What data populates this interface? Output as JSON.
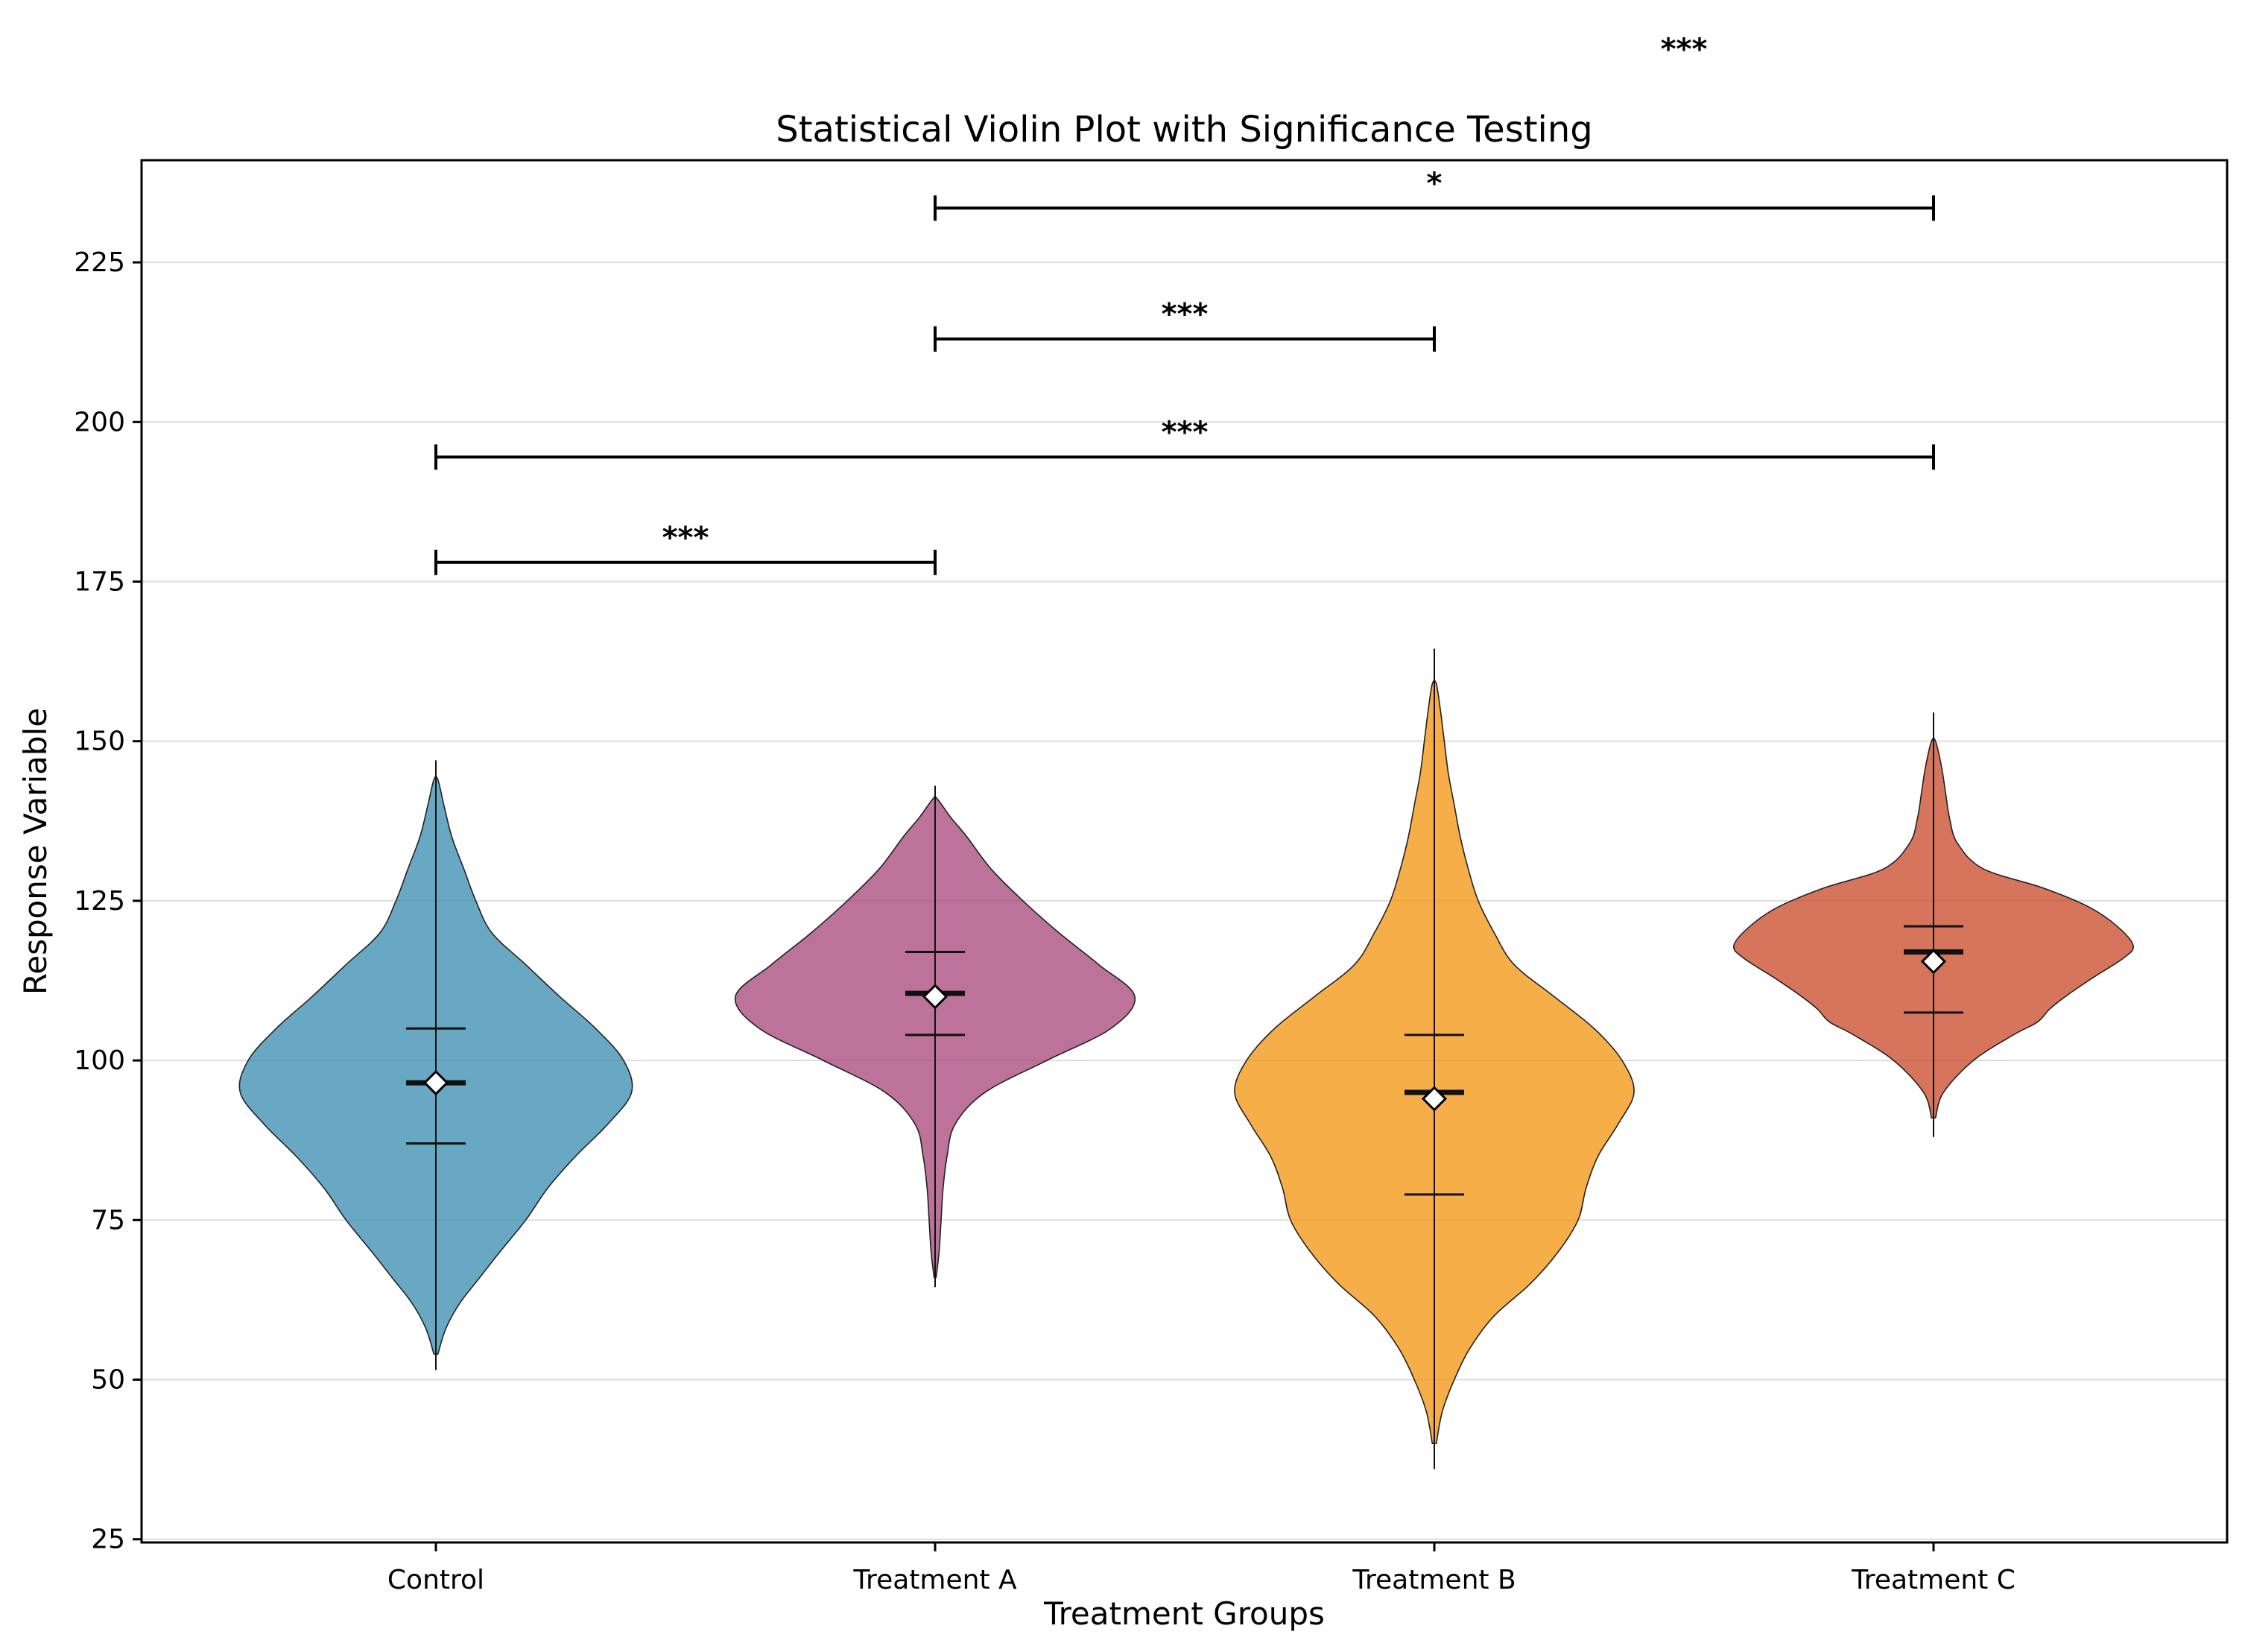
{
  "chart_data": {
    "type": "violin",
    "title": "Statistical Violin Plot with Significance Testing",
    "xlabel": "Treatment Groups",
    "ylabel": "Response Variable",
    "ylim": [
      24.5,
      241
    ],
    "yticks": [
      25,
      50,
      75,
      100,
      125,
      150,
      175,
      200,
      225
    ],
    "ytick_labels": [
      "25",
      "50",
      "75",
      "100",
      "125",
      "150",
      "175",
      "200",
      "225"
    ],
    "grid": "horizontal",
    "categories": [
      "Control",
      "Treatment A",
      "Treatment B",
      "Treatment C"
    ],
    "groups": [
      {
        "name": "Control",
        "color": "#2E86AB",
        "min": 51.5,
        "max": 147,
        "q1": 87,
        "median": 96.5,
        "q3": 105,
        "mean": 96.5,
        "density": [
          [
            54,
            0.01
          ],
          [
            58,
            0.05
          ],
          [
            62,
            0.12
          ],
          [
            66,
            0.22
          ],
          [
            70,
            0.32
          ],
          [
            75,
            0.45
          ],
          [
            80,
            0.56
          ],
          [
            85,
            0.7
          ],
          [
            90,
            0.86
          ],
          [
            95,
            0.98
          ],
          [
            100,
            0.94
          ],
          [
            105,
            0.8
          ],
          [
            110,
            0.62
          ],
          [
            115,
            0.45
          ],
          [
            120,
            0.28
          ],
          [
            125,
            0.2
          ],
          [
            130,
            0.14
          ],
          [
            135,
            0.08
          ],
          [
            140,
            0.04
          ],
          [
            144,
            0.01
          ]
        ]
      },
      {
        "name": "Treatment A",
        "color": "#A23B72",
        "min": 64.5,
        "max": 143,
        "q1": 104,
        "median": 110.5,
        "q3": 117,
        "mean": 110,
        "density": [
          [
            66,
            0.005
          ],
          [
            70,
            0.02
          ],
          [
            75,
            0.03
          ],
          [
            80,
            0.04
          ],
          [
            85,
            0.06
          ],
          [
            90,
            0.1
          ],
          [
            95,
            0.25
          ],
          [
            100,
            0.56
          ],
          [
            105,
            0.88
          ],
          [
            110,
            1.0
          ],
          [
            115,
            0.82
          ],
          [
            120,
            0.62
          ],
          [
            125,
            0.44
          ],
          [
            130,
            0.28
          ],
          [
            135,
            0.16
          ],
          [
            138,
            0.08
          ],
          [
            141,
            0.01
          ]
        ]
      },
      {
        "name": "Treatment B",
        "color": "#F18F01",
        "min": 36,
        "max": 164.5,
        "q1": 79,
        "median": 95,
        "q3": 104,
        "mean": 94,
        "density": [
          [
            40,
            0.01
          ],
          [
            45,
            0.04
          ],
          [
            50,
            0.1
          ],
          [
            55,
            0.18
          ],
          [
            60,
            0.3
          ],
          [
            65,
            0.48
          ],
          [
            70,
            0.62
          ],
          [
            75,
            0.72
          ],
          [
            80,
            0.76
          ],
          [
            85,
            0.82
          ],
          [
            90,
            0.92
          ],
          [
            95,
            1.0
          ],
          [
            100,
            0.94
          ],
          [
            105,
            0.8
          ],
          [
            110,
            0.6
          ],
          [
            115,
            0.4
          ],
          [
            120,
            0.3
          ],
          [
            125,
            0.22
          ],
          [
            130,
            0.17
          ],
          [
            135,
            0.13
          ],
          [
            140,
            0.1
          ],
          [
            145,
            0.07
          ],
          [
            150,
            0.05
          ],
          [
            155,
            0.03
          ],
          [
            159,
            0.01
          ]
        ]
      },
      {
        "name": "Treatment C",
        "color": "#C73E1D",
        "min": 88,
        "max": 154.5,
        "q1": 107.5,
        "median": 117,
        "q3": 121,
        "mean": 115.5,
        "density": [
          [
            91,
            0.01
          ],
          [
            95,
            0.05
          ],
          [
            100,
            0.2
          ],
          [
            104,
            0.4
          ],
          [
            106,
            0.52
          ],
          [
            108,
            0.58
          ],
          [
            110,
            0.66
          ],
          [
            113,
            0.8
          ],
          [
            116,
            0.95
          ],
          [
            118,
            1.0
          ],
          [
            121,
            0.92
          ],
          [
            124,
            0.78
          ],
          [
            127,
            0.55
          ],
          [
            130,
            0.25
          ],
          [
            134,
            0.12
          ],
          [
            138,
            0.08
          ],
          [
            142,
            0.06
          ],
          [
            146,
            0.04
          ],
          [
            150,
            0.01
          ]
        ]
      }
    ],
    "significance": [
      {
        "from": 0,
        "to": 1,
        "y": 178,
        "label": "***"
      },
      {
        "from": 0,
        "to": 3,
        "y": 194.5,
        "label": "***"
      },
      {
        "from": 1,
        "to": 2,
        "y": 213,
        "label": "***"
      },
      {
        "from": 1,
        "to": 3,
        "y": 233.5,
        "label": "*"
      },
      {
        "from": 2,
        "to": 3,
        "y": 254.5,
        "label": "***"
      }
    ]
  }
}
